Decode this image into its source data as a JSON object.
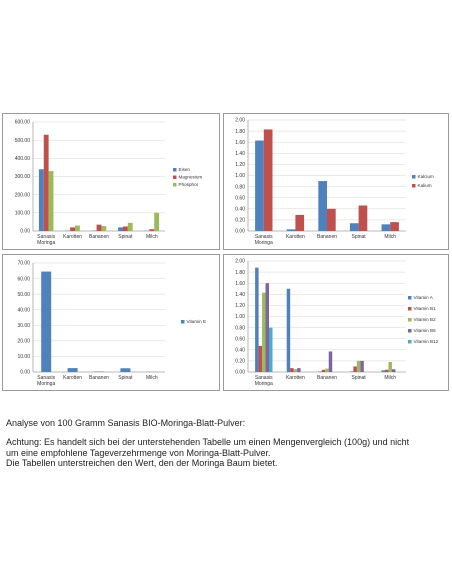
{
  "chart_data": [
    {
      "type": "bar",
      "categories": [
        "Sanasis Moringa",
        "Karotten",
        "Bananen",
        "Spinat",
        "Milch"
      ],
      "category_lines": [
        [
          "Sanasis",
          "Moringa"
        ],
        [
          "Karotten"
        ],
        [
          "Bananen"
        ],
        [
          "Spinat"
        ],
        [
          "Milch"
        ]
      ],
      "ylim": [
        0,
        600
      ],
      "yticks": [
        "0.00",
        "100.00",
        "200.00",
        "300.00",
        "400.00",
        "500.00",
        "600.00"
      ],
      "grid": true,
      "legend_position": "right",
      "series": [
        {
          "name": "Eisen",
          "color": "#4f81bd",
          "values": [
            340,
            2,
            2,
            20,
            2
          ]
        },
        {
          "name": "Magnesium",
          "color": "#c0504d",
          "values": [
            530,
            20,
            35,
            25,
            10
          ]
        },
        {
          "name": "Phosphor",
          "color": "#9bbb59",
          "values": [
            330,
            30,
            27,
            45,
            100
          ]
        }
      ]
    },
    {
      "type": "bar",
      "categories": [
        "Sanasis Moringa",
        "Karotten",
        "Bananen",
        "Spinat",
        "Milch"
      ],
      "category_lines": [
        [
          "Sanasis",
          "Moringa"
        ],
        [
          "Karotten"
        ],
        [
          "Bananen"
        ],
        [
          "Spinat"
        ],
        [
          "Milch"
        ]
      ],
      "ylim": [
        0,
        2
      ],
      "yticks": [
        "0.00",
        "0.20",
        "0.40",
        "0.60",
        "0.80",
        "1.00",
        "1.20",
        "1.40",
        "1.60",
        "1.80",
        "2.00"
      ],
      "grid": true,
      "legend_position": "right",
      "series": [
        {
          "name": "Kalcium",
          "color": "#4f81bd",
          "values": [
            1.63,
            0.03,
            0.9,
            0.14,
            0.12
          ]
        },
        {
          "name": "Kalium",
          "color": "#c0504d",
          "values": [
            1.83,
            0.29,
            0.4,
            0.46,
            0.16
          ]
        }
      ]
    },
    {
      "type": "bar",
      "categories": [
        "Sanasis Moringa",
        "Karotten",
        "Bananen",
        "Spinat",
        "Milch"
      ],
      "category_lines": [
        [
          "Sanasis",
          "Moringa"
        ],
        [
          "Karotten"
        ],
        [
          "Bananen"
        ],
        [
          "Spinat"
        ],
        [
          "Milch"
        ]
      ],
      "ylim": [
        0,
        70
      ],
      "yticks": [
        "0.00",
        "10.00",
        "20.00",
        "30.00",
        "40.00",
        "50.00",
        "60.00",
        "70.00"
      ],
      "grid": true,
      "legend_position": "right",
      "series": [
        {
          "name": "Vitamin E",
          "color": "#4f81bd",
          "values": [
            64.5,
            2.5,
            0.3,
            2.4,
            0.1
          ]
        }
      ]
    },
    {
      "type": "bar",
      "categories": [
        "Sanasis Moringa",
        "Karotten",
        "Bananen",
        "Spinat",
        "Milch"
      ],
      "category_lines": [
        [
          "Sanasis",
          "Moringa"
        ],
        [
          "Karotten"
        ],
        [
          "Bananen"
        ],
        [
          "Spinat"
        ],
        [
          "Milch"
        ]
      ],
      "ylim": [
        0,
        2
      ],
      "yticks": [
        "0.00",
        "0.20",
        "0.40",
        "0.60",
        "0.80",
        "1.00",
        "1.20",
        "1.40",
        "1.60",
        "1.80",
        "2.00"
      ],
      "grid": true,
      "legend_position": "right",
      "series": [
        {
          "name": "Vitamin A",
          "color": "#4f81bd",
          "values": [
            1.88,
            1.5,
            0.01,
            0.01,
            0.03
          ]
        },
        {
          "name": "Vitamin B1",
          "color": "#c0504d",
          "values": [
            0.47,
            0.07,
            0.04,
            0.1,
            0.04
          ]
        },
        {
          "name": "Vitamin B2",
          "color": "#9bbb59",
          "values": [
            1.43,
            0.05,
            0.06,
            0.2,
            0.18
          ]
        },
        {
          "name": "Vitamin B6",
          "color": "#8064a2",
          "values": [
            1.6,
            0.07,
            0.37,
            0.2,
            0.05
          ]
        },
        {
          "name": "Vitamin B12",
          "color": "#4bacc6",
          "values": [
            0.8,
            0,
            0,
            0,
            0
          ]
        }
      ]
    }
  ],
  "caption": {
    "heading": "Analyse von 100 Gramm Sanasis BIO-Moringa-Blatt-Pulver:",
    "line1": "Achtung: Es handelt sich bei der unterstehenden Tabelle um einen Mengenvergleich (100g) und nicht",
    "line2": "um eine empfohlene Tageverzehrmenge von Moringa-Blatt-Pulver.",
    "line3": "Die Tabellen unterstreichen den Wert, den der Moringa Baum bietet."
  }
}
